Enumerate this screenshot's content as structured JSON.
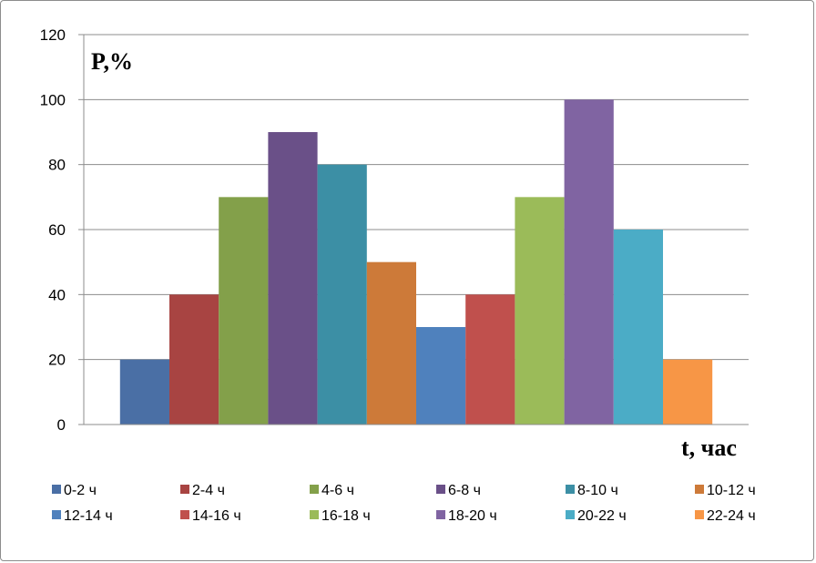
{
  "chart_data": {
    "type": "bar",
    "ylabel": "P,%",
    "xlabel": "t, час",
    "ylim": [
      0,
      120
    ],
    "yticks": [
      0,
      20,
      40,
      60,
      80,
      100,
      120
    ],
    "grid": true,
    "legend_position": "bottom",
    "series": [
      {
        "name": "0-2 ч",
        "values": [
          20
        ],
        "color": "#4a6fa5"
      },
      {
        "name": "2-4 ч",
        "values": [
          40
        ],
        "color": "#a84442"
      },
      {
        "name": "4-6 ч",
        "values": [
          70
        ],
        "color": "#83a04a"
      },
      {
        "name": "6-8 ч",
        "values": [
          90
        ],
        "color": "#6a5088"
      },
      {
        "name": "8-10 ч",
        "values": [
          80
        ],
        "color": "#3c8fa5"
      },
      {
        "name": "10-12 ч",
        "values": [
          50
        ],
        "color": "#cd7a39"
      },
      {
        "name": "12-14 ч",
        "values": [
          30
        ],
        "color": "#4f81bd"
      },
      {
        "name": "14-16 ч",
        "values": [
          40
        ],
        "color": "#c0504d"
      },
      {
        "name": "16-18 ч",
        "values": [
          70
        ],
        "color": "#9bbb59"
      },
      {
        "name": "18-20 ч",
        "values": [
          100
        ],
        "color": "#8064a2"
      },
      {
        "name": "20-22 ч",
        "values": [
          60
        ],
        "color": "#4bacc6"
      },
      {
        "name": "22-24 ч",
        "values": [
          20
        ],
        "color": "#f79646"
      }
    ]
  }
}
